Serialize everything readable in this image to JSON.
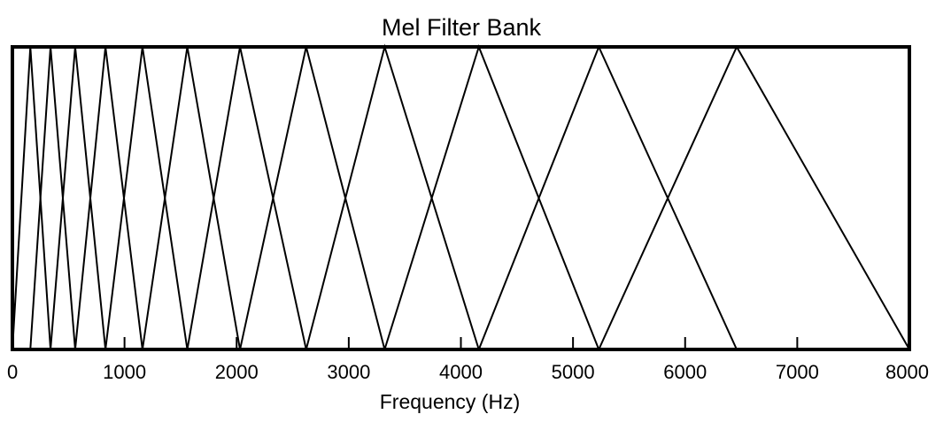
{
  "chart_data": {
    "type": "line",
    "title": "Mel Filter Bank",
    "xlabel": "Frequency (Hz)",
    "ylabel": "",
    "xlim": [
      0,
      8000
    ],
    "ylim": [
      0,
      1
    ],
    "xticks": [
      0,
      1000,
      2000,
      3000,
      4000,
      5000,
      6000,
      7000,
      8000
    ],
    "xtick_labels": [
      "0",
      "1000",
      "2000",
      "3000",
      "4000",
      "5000",
      "6000",
      "7000",
      "8000"
    ],
    "yticks": [],
    "grid": false,
    "legend": "none",
    "filter_edges_hz": [
      0,
      160,
      340,
      560,
      830,
      1160,
      1560,
      2030,
      2620,
      3320,
      4160,
      5230,
      6460,
      8000
    ],
    "filter_count": 12,
    "line_color": "#000000"
  }
}
